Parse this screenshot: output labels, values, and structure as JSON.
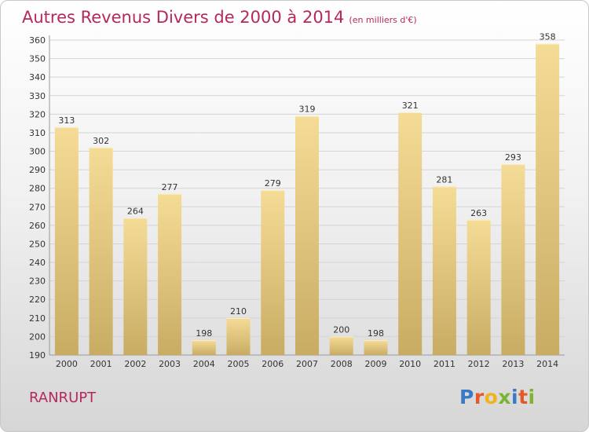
{
  "header": {
    "title": "Autres Revenus Divers de 2000 à 2014",
    "unit": "(en milliers d'€)"
  },
  "commune": "RANRUPT",
  "logo": {
    "text": "Proxiti",
    "colors": [
      "#3a79c4",
      "#e3592a",
      "#7bb432",
      "#f2b21b"
    ]
  },
  "colors": {
    "title": "#b5285d",
    "bar_top": "#f5dc96",
    "bar_bottom": "#c8ac64",
    "grid": "#d4d4d4"
  },
  "chart_data": {
    "type": "bar",
    "title": "Autres Revenus Divers de 2000 à 2014",
    "xlabel": "",
    "ylabel": "",
    "categories": [
      "2000",
      "2001",
      "2002",
      "2003",
      "2004",
      "2005",
      "2006",
      "2007",
      "2008",
      "2009",
      "2010",
      "2011",
      "2012",
      "2013",
      "2014"
    ],
    "values": [
      313,
      302,
      264,
      277,
      198,
      210,
      279,
      319,
      200,
      198,
      321,
      281,
      263,
      293,
      358
    ],
    "ylim": [
      190,
      360
    ],
    "ytick_step": 10,
    "grid": true
  }
}
